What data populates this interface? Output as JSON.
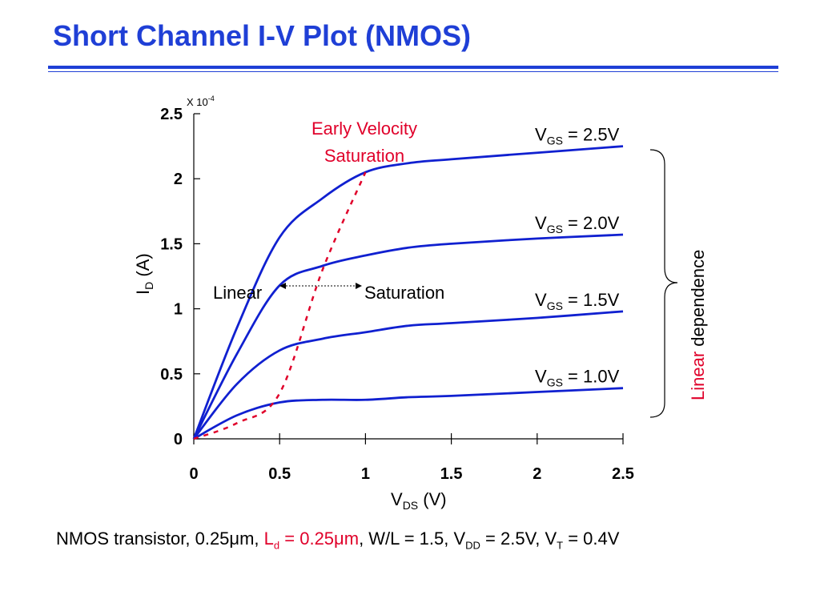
{
  "title": "Short Channel I-V Plot (NMOS)",
  "chart_data": {
    "type": "line",
    "xlabel_main": "V",
    "xlabel_sub": "DS",
    "xlabel_unit": " (V)",
    "ylabel_main": "I",
    "ylabel_sub": "D",
    "ylabel_unit": " (A)",
    "y_multiplier_base": "X 10",
    "y_multiplier_exp": "-4",
    "xlim": [
      0,
      2.5
    ],
    "ylim": [
      0,
      2.5
    ],
    "x_ticks": [
      0,
      0.5,
      1,
      1.5,
      2,
      2.5
    ],
    "y_ticks": [
      0,
      0.5,
      1,
      1.5,
      2,
      2.5
    ],
    "x_tick_labels": [
      "0",
      "0.5",
      "1",
      "1.5",
      "2",
      "2.5"
    ],
    "y_tick_labels": [
      "0",
      "0.5",
      "1",
      "1.5",
      "2",
      "2.5"
    ],
    "series": [
      {
        "label_main": "V",
        "label_sub": "GS",
        "label_rest": " = 2.5V",
        "x": [
          0,
          0.25,
          0.5,
          0.75,
          1.0,
          1.25,
          1.5,
          2.0,
          2.5
        ],
        "y": [
          0,
          0.85,
          1.55,
          1.85,
          2.05,
          2.12,
          2.15,
          2.2,
          2.25
        ]
      },
      {
        "label_main": "V",
        "label_sub": "GS",
        "label_rest": " = 2.0V",
        "x": [
          0,
          0.25,
          0.5,
          0.75,
          1.0,
          1.25,
          1.5,
          2.0,
          2.5
        ],
        "y": [
          0,
          0.65,
          1.18,
          1.33,
          1.41,
          1.47,
          1.5,
          1.54,
          1.57
        ]
      },
      {
        "label_main": "V",
        "label_sub": "GS",
        "label_rest": " = 1.5V",
        "x": [
          0,
          0.25,
          0.5,
          0.75,
          1.0,
          1.25,
          1.5,
          2.0,
          2.5
        ],
        "y": [
          0,
          0.42,
          0.68,
          0.77,
          0.82,
          0.87,
          0.89,
          0.93,
          0.98
        ]
      },
      {
        "label_main": "V",
        "label_sub": "GS",
        "label_rest": " = 1.0V",
        "x": [
          0,
          0.25,
          0.5,
          0.75,
          1.0,
          1.25,
          1.5,
          2.0,
          2.5
        ],
        "y": [
          0,
          0.18,
          0.28,
          0.3,
          0.3,
          0.32,
          0.33,
          0.36,
          0.39
        ]
      }
    ],
    "boundary": {
      "label_line1": "Early Velocity",
      "label_line2": "Saturation",
      "x": [
        0,
        0.25,
        0.5,
        0.75,
        1.0
      ],
      "y": [
        0,
        0.12,
        0.35,
        1.3,
        2.05
      ]
    },
    "region_left": "Linear",
    "region_right": "Saturation",
    "brace_label_colored": "Linear",
    "brace_label_rest": " dependence",
    "colors": {
      "curve": "#1020d0",
      "boundary": "#e0002a",
      "title": "#1f3fd6"
    }
  },
  "footer": {
    "p1": "NMOS transistor, 0.25",
    "mu1": "μ",
    "p2": "m, ",
    "ld_main": "L",
    "ld_sub": "d",
    "ld_rest": " = 0.25",
    "mu2": "μ",
    "ld_m": "m",
    "p3": ", W/L = 1.5, V",
    "vdd_sub": "DD",
    "p4": " = 2.5V, V",
    "vt_sub": "T",
    "p5": " = 0.4V"
  }
}
